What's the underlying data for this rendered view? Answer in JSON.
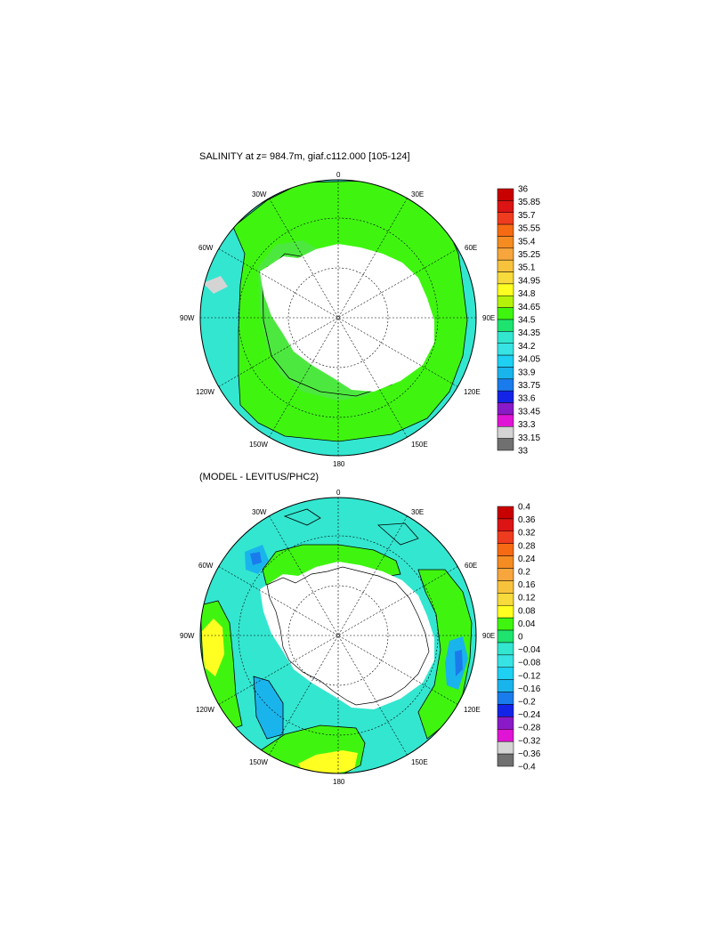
{
  "colors": {
    "land": "#ffffff",
    "ice_shelf": "#ffffff",
    "ocean_base_top": "#44e27e",
    "ocean_mid_top": "#3ff510",
    "ocean_outer_top": "#33e6d0",
    "ocean_base_bottom": "#33e6d0",
    "green_bottom": "#3ff510",
    "yellow_bottom": "#ffff22",
    "blue_bottom": "#1ab4ec",
    "deep_blue_bottom": "#1a7cec"
  },
  "top_panel": {
    "title": "SALINITY at z= 984.7m, giaf.c112.000 [105-124]",
    "lon_labels": [
      "0",
      "30E",
      "60E",
      "90E",
      "120E",
      "150E",
      "180",
      "150W",
      "120W",
      "90W",
      "60W",
      "30W"
    ],
    "colorbar": {
      "labels": [
        "36",
        "35.85",
        "35.7",
        "35.55",
        "35.4",
        "35.25",
        "35.1",
        "34.95",
        "34.8",
        "34.65",
        "34.5",
        "34.35",
        "34.2",
        "34.05",
        "33.9",
        "33.75",
        "33.6",
        "33.45",
        "33.3",
        "33.15",
        "33"
      ],
      "colors": [
        "#c80000",
        "#dc1414",
        "#f03c1e",
        "#f76a14",
        "#f58c22",
        "#f6a63c",
        "#f8c33c",
        "#f7da3c",
        "#ffff22",
        "#b5f20a",
        "#3ff510",
        "#1fe36f",
        "#33e6d0",
        "#38e3e3",
        "#1ed0f2",
        "#1ab4ec",
        "#1a7cec",
        "#1424e6",
        "#8a1ac8",
        "#e014d4",
        "#d4d4d4",
        "#707070"
      ]
    }
  },
  "bottom_panel": {
    "title": "(MODEL - LEVITUS/PHC2)",
    "lon_labels": [
      "0",
      "30E",
      "60E",
      "90E",
      "120E",
      "150E",
      "180",
      "150W",
      "120W",
      "90W",
      "60W",
      "30W"
    ],
    "colorbar": {
      "labels": [
        "0.4",
        "0.36",
        "0.32",
        "0.28",
        "0.24",
        "0.2",
        "0.16",
        "0.12",
        "0.08",
        "0.04",
        "0",
        "−0.04",
        "−0.08",
        "−0.12",
        "−0.16",
        "−0.2",
        "−0.24",
        "−0.28",
        "−0.32",
        "−0.36",
        "−0.4"
      ],
      "colors": [
        "#c80000",
        "#dc1414",
        "#f03c1e",
        "#f76a14",
        "#f58c22",
        "#f6a63c",
        "#f8c33c",
        "#f7da3c",
        "#ffff22",
        "#3ff510",
        "#1fe36f",
        "#33e6d0",
        "#38e3e3",
        "#1ed0f2",
        "#1ab4ec",
        "#1a7cec",
        "#1424e6",
        "#8a1ac8",
        "#e014d4",
        "#d4d4d4",
        "#707070"
      ]
    }
  }
}
